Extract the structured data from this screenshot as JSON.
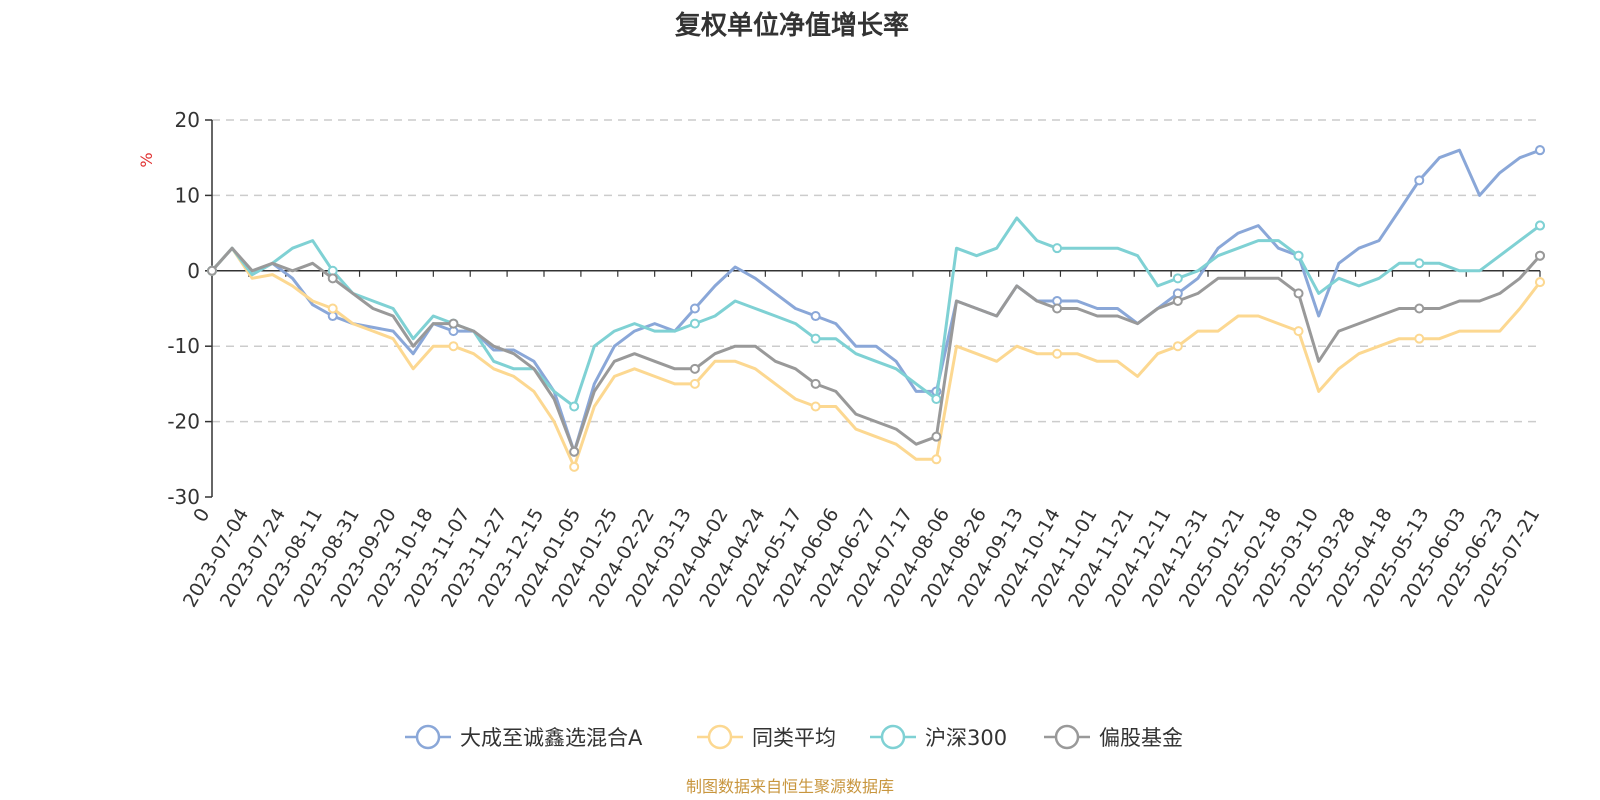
{
  "chart_data": {
    "type": "line",
    "title": "复权单位净值增长率",
    "ylabel": "%",
    "ylim": [
      -30,
      20
    ],
    "yticks": [
      20,
      10,
      0,
      -10,
      -20,
      -30
    ],
    "x_start_label": "0",
    "xticks": [
      "2023-07-04",
      "2023-07-24",
      "2023-08-11",
      "2023-08-31",
      "2023-09-20",
      "2023-10-18",
      "2023-11-07",
      "2023-11-27",
      "2023-12-15",
      "2024-01-05",
      "2024-01-25",
      "2024-02-22",
      "2024-03-13",
      "2024-04-02",
      "2024-04-24",
      "2024-05-17",
      "2024-06-06",
      "2024-06-27",
      "2024-07-17",
      "2024-08-06",
      "2024-08-26",
      "2024-09-13",
      "2024-10-14",
      "2024-11-01",
      "2024-11-21",
      "2024-12-11",
      "2024-12-31",
      "2025-01-21",
      "2025-02-18",
      "2025-03-10",
      "2025-03-28",
      "2025-04-18",
      "2025-05-13",
      "2025-06-03",
      "2025-06-23",
      "2025-07-21"
    ],
    "grid": true,
    "legend_position": "bottom",
    "series": [
      {
        "name": "大成至诚鑫选混合A",
        "color": "#8aa7d8",
        "values": [
          0,
          3,
          -0.5,
          1,
          -1,
          -4.5,
          -6,
          -7,
          -7.5,
          -8,
          -11,
          -7,
          -8,
          -8,
          -10.5,
          -10.5,
          -12,
          -16,
          -24,
          -15,
          -10,
          -8,
          -7,
          -8,
          -5,
          -2,
          0.5,
          -1,
          -3,
          -5,
          -6,
          -7,
          -10,
          -10,
          -12,
          -16,
          -16,
          -4,
          -5,
          -6,
          -2,
          -4,
          -4,
          -4,
          -5,
          -5,
          -7,
          -5,
          -3,
          -1,
          3,
          5,
          6,
          3,
          2,
          -6,
          1,
          3,
          4,
          8,
          12,
          15,
          16,
          10,
          13,
          15,
          16
        ]
      },
      {
        "name": "同类平均",
        "color": "#fcd891",
        "values": [
          0,
          3,
          -1,
          -0.5,
          -2,
          -4,
          -5,
          -7,
          -8,
          -9,
          -13,
          -10,
          -10,
          -11,
          -13,
          -14,
          -16,
          -20,
          -26,
          -18,
          -14,
          -13,
          -14,
          -15,
          -15,
          -12,
          -12,
          -13,
          -15,
          -17,
          -18,
          -18,
          -21,
          -22,
          -23,
          -25,
          -25,
          -10,
          -11,
          -12,
          -10,
          -11,
          -11,
          -11,
          -12,
          -12,
          -14,
          -11,
          -10,
          -8,
          -8,
          -6,
          -6,
          -7,
          -8,
          -16,
          -13,
          -11,
          -10,
          -9,
          -9,
          -9,
          -8,
          -8,
          -8,
          -5,
          -1.5
        ]
      },
      {
        "name": "沪深300",
        "color": "#7fd1d4",
        "values": [
          0,
          3,
          -0.5,
          1,
          3,
          4,
          0,
          -3,
          -4,
          -5,
          -9,
          -6,
          -7,
          -8,
          -12,
          -13,
          -13,
          -16,
          -18,
          -10,
          -8,
          -7,
          -8,
          -8,
          -7,
          -6,
          -4,
          -5,
          -6,
          -7,
          -9,
          -9,
          -11,
          -12,
          -13,
          -15,
          -17,
          3,
          2,
          3,
          7,
          4,
          3,
          3,
          3,
          3,
          2,
          -2,
          -1,
          0,
          2,
          3,
          4,
          4,
          2,
          -3,
          -1,
          -2,
          -1,
          1,
          1,
          1,
          0,
          0,
          2,
          4,
          6
        ]
      },
      {
        "name": "偏股基金",
        "color": "#999999",
        "values": [
          0,
          3,
          0,
          1,
          0,
          1,
          -1,
          -3,
          -5,
          -6,
          -10,
          -7,
          -7,
          -8,
          -10,
          -11,
          -13,
          -17,
          -24,
          -16,
          -12,
          -11,
          -12,
          -13,
          -13,
          -11,
          -10,
          -10,
          -12,
          -13,
          -15,
          -16,
          -19,
          -20,
          -21,
          -23,
          -22,
          -4,
          -5,
          -6,
          -2,
          -4,
          -5,
          -5,
          -6,
          -6,
          -7,
          -5,
          -4,
          -3,
          -1,
          -1,
          -1,
          -1,
          -3,
          -12,
          -8,
          -7,
          -6,
          -5,
          -5,
          -5,
          -4,
          -4,
          -3,
          -1,
          2
        ]
      }
    ]
  },
  "source_note": "制图数据来自恒生聚源数据库"
}
